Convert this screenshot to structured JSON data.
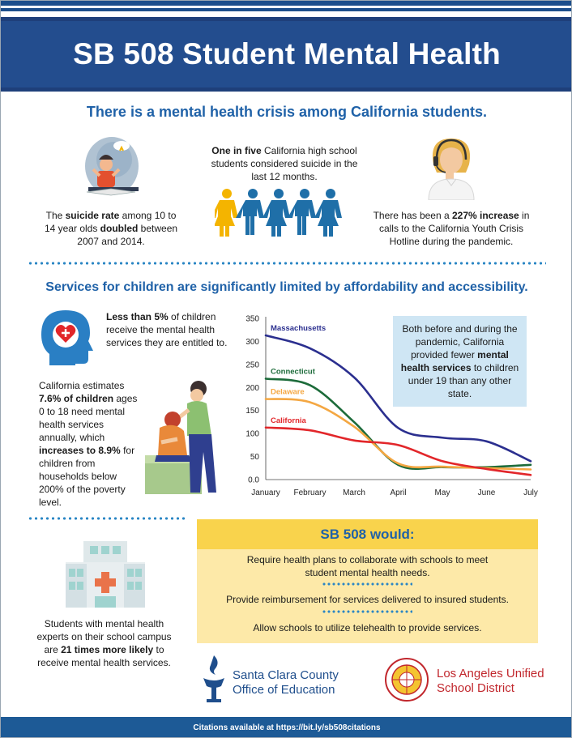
{
  "header": {
    "title": "SB 508 Student Mental Health"
  },
  "section1": {
    "heading": "There is a mental health crisis among California students.",
    "suicide": {
      "pre": "The ",
      "bold1": "suicide rate",
      "mid": " among 10 to 14 year olds ",
      "bold2": "doubled",
      "post": " between 2007 and 2014."
    },
    "one_in_five": {
      "bold": "One in five",
      "rest": " California high school students considered suicide in the last 12 months."
    },
    "hotline": {
      "pre": "There has been a ",
      "bold": "227% increase",
      "post": " in calls to the California Youth Crisis Hotline during the pandemic."
    }
  },
  "section2": {
    "heading": "Services for children are significantly limited by affordability and accessibility.",
    "less_than": {
      "bold": "Less than 5%",
      "rest": " of children receive the mental health services they are entitled to."
    },
    "estimate": {
      "pre": "California estimates ",
      "bold1": "7.6% of children",
      "mid": " ages 0 to 18 need mental health services annually, which ",
      "bold2": "increases to 8.9%",
      "post": " for children from households below 200% of the poverty level."
    },
    "callout": {
      "pre": "Both before and during the pandemic, California provided fewer ",
      "bold": "mental health services",
      "post": " to children under 19 than any other state."
    }
  },
  "chart_data": {
    "type": "line",
    "categories": [
      "January",
      "February",
      "March",
      "April",
      "May",
      "June",
      "July"
    ],
    "ylim": [
      0,
      350
    ],
    "yticks": [
      "0.0",
      "50",
      "100",
      "150",
      "200",
      "250",
      "300",
      "350"
    ],
    "grid": false,
    "series": [
      {
        "name": "Massachusetts",
        "color": "#2b2f8f",
        "values": [
          313,
          285,
          222,
          112,
          91,
          83,
          40
        ]
      },
      {
        "name": "Connecticut",
        "color": "#1c6b3a",
        "values": [
          219,
          205,
          125,
          32,
          27,
          27,
          32
        ]
      },
      {
        "name": "Delaware",
        "color": "#f4a742",
        "values": [
          175,
          168,
          115,
          35,
          28,
          25,
          22
        ]
      },
      {
        "name": "California",
        "color": "#e2262a",
        "values": [
          113,
          107,
          85,
          75,
          40,
          23,
          10
        ]
      }
    ]
  },
  "section3": {
    "experts": {
      "pre": "Students with mental health experts on their school campus are ",
      "bold": "21 times more likely",
      "post": " to receive mental health services."
    },
    "sb_head": "SB 508 would:",
    "items": [
      "Require health plans to collaborate with schools to meet student mental health needs.",
      "Provide reimbursement for services delivered to insured students.",
      "Allow schools to utilize telehealth to provide services."
    ]
  },
  "logos": {
    "scc_line1": "Santa Clara County",
    "scc_line2": "Office of Education",
    "lausd_line1": "Los Angeles Unified",
    "lausd_line2": "School District",
    "lausd_seal_text": "LOS ANGELES UNIFIED SCHOOL DISTRICT · STUDENTS AT THE CENTER"
  },
  "footer": {
    "pre": "Citations available at ",
    "link": "https://bit.ly/sb508citations"
  },
  "colors": {
    "navy": "#234d8e",
    "heading_blue": "#2062a8",
    "yellow": "#f9d34c",
    "light_yellow": "#fde9a8",
    "callout_blue": "#cfe6f4"
  }
}
